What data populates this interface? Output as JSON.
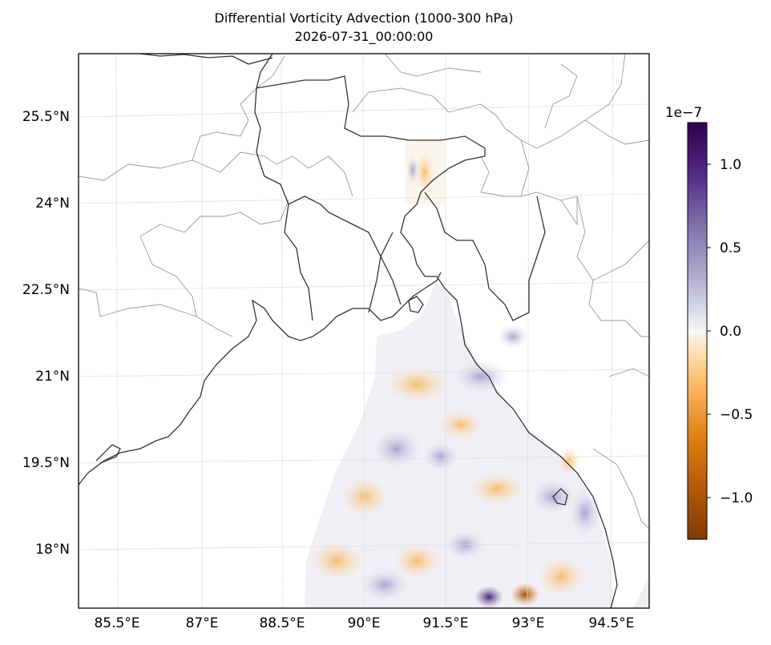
{
  "title": {
    "line1": "Differential Vorticity Advection (1000-300 hPa)",
    "line2": "2026-07-31_00:00:00"
  },
  "map": {
    "lat_labels": [
      "25.5°N",
      "24°N",
      "22.5°N",
      "21°N",
      "19.5°N",
      "18°N"
    ],
    "lon_labels": [
      "85.5°E",
      "87°E",
      "88.5°E",
      "90°E",
      "91.5°E",
      "93°E",
      "94.5°E"
    ],
    "gridlines": true,
    "coastline_color": "#333333",
    "border_color": "#999999"
  },
  "colorbar": {
    "colormap": "PuOr (orange negative, purple positive)",
    "exponent_label": "1e−7",
    "tick_labels": [
      "1.0",
      "0.5",
      "0.0",
      "−0.5",
      "−1.0"
    ],
    "vmin": -1.25,
    "vmax": 1.25,
    "ticks": [
      1.0,
      0.5,
      0.0,
      -0.5,
      -1.0
    ],
    "colors": {
      "neg_max": "#7f3b08",
      "neg_mid": "#fdb863",
      "zero": "#f7f7f7",
      "pos_mid": "#b2abd2",
      "pos_max": "#2d004b"
    }
  }
}
